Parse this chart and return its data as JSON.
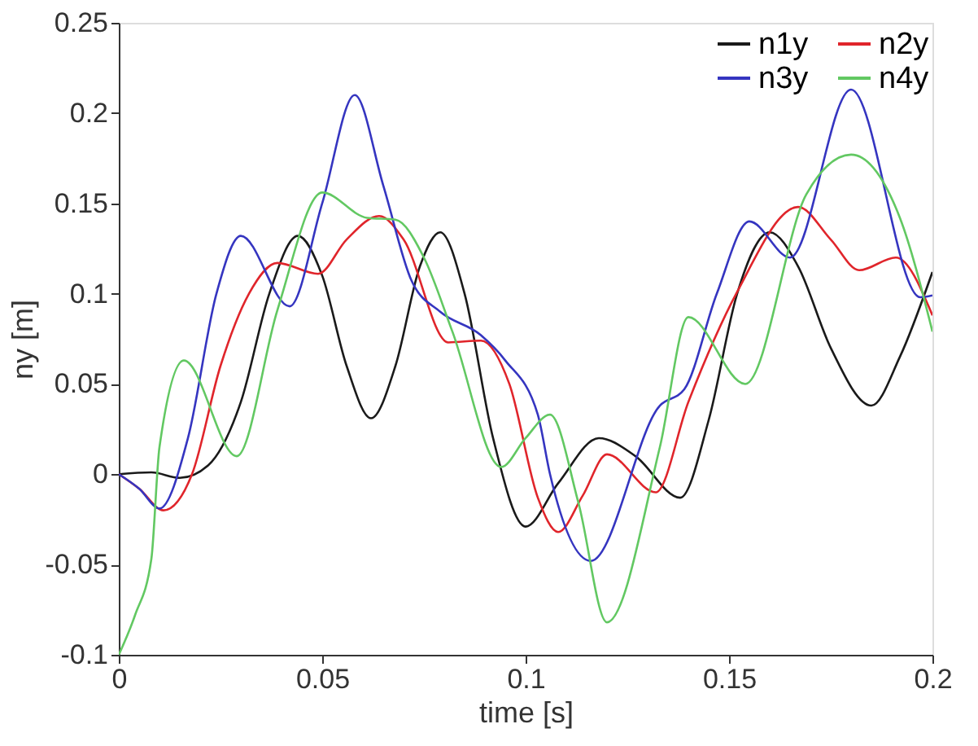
{
  "chart_data": {
    "type": "line",
    "xlabel": "time [s]",
    "ylabel": "ny [m]",
    "xlim": [
      0,
      0.2
    ],
    "ylim": [
      -0.1,
      0.25
    ],
    "xticks": [
      0,
      0.05,
      0.1,
      0.15,
      0.2
    ],
    "yticks": [
      -0.1,
      -0.05,
      0,
      0.05,
      0.1,
      0.15,
      0.2,
      0.25
    ],
    "legend": "top right",
    "line_style": "solid",
    "series": [
      {
        "name": "n1y",
        "color": "#1a1a1a",
        "x": [
          0,
          0.008,
          0.015,
          0.022,
          0.03,
          0.037,
          0.044,
          0.05,
          0.056,
          0.062,
          0.068,
          0.074,
          0.079,
          0.085,
          0.092,
          0.1,
          0.108,
          0.118,
          0.127,
          0.138,
          0.145,
          0.152,
          0.16,
          0.167,
          0.175,
          0.185,
          0.192,
          0.2
        ],
        "values": [
          0,
          0.001,
          -0.002,
          0.005,
          0.04,
          0.1,
          0.132,
          0.11,
          0.06,
          0.031,
          0.06,
          0.115,
          0.134,
          0.1,
          0.02,
          -0.029,
          -0.005,
          0.02,
          0.01,
          -0.013,
          0.03,
          0.1,
          0.134,
          0.115,
          0.07,
          0.038,
          0.065,
          0.112
        ]
      },
      {
        "name": "n2y",
        "color": "#e0252b",
        "x": [
          0,
          0.005,
          0.011,
          0.018,
          0.025,
          0.032,
          0.039,
          0.049,
          0.056,
          0.064,
          0.07,
          0.081,
          0.089,
          0.096,
          0.103,
          0.108,
          0.114,
          0.12,
          0.132,
          0.14,
          0.152,
          0.167,
          0.175,
          0.182,
          0.191,
          0.2
        ],
        "values": [
          0,
          -0.008,
          -0.02,
          0.0,
          0.06,
          0.1,
          0.117,
          0.111,
          0.13,
          0.143,
          0.13,
          0.073,
          0.074,
          0.05,
          -0.013,
          -0.032,
          -0.012,
          0.011,
          -0.01,
          0.04,
          0.101,
          0.148,
          0.13,
          0.113,
          0.12,
          0.088
        ]
      },
      {
        "name": "n3y",
        "color": "#3535c0",
        "x": [
          0,
          0.005,
          0.01,
          0.017,
          0.024,
          0.03,
          0.042,
          0.05,
          0.058,
          0.065,
          0.072,
          0.079,
          0.089,
          0.095,
          0.103,
          0.106,
          0.116,
          0.133,
          0.139,
          0.147,
          0.155,
          0.165,
          0.18,
          0.197,
          0.2
        ],
        "values": [
          0,
          -0.008,
          -0.019,
          0.02,
          0.1,
          0.132,
          0.093,
          0.15,
          0.21,
          0.16,
          0.107,
          0.09,
          0.077,
          0.063,
          0.033,
          0.0,
          -0.048,
          0.038,
          0.047,
          0.1,
          0.14,
          0.12,
          0.213,
          0.098,
          0.099
        ]
      },
      {
        "name": "n4y",
        "color": "#62c862",
        "x": [
          0,
          0.004,
          0.008,
          0.01,
          0.016,
          0.029,
          0.039,
          0.05,
          0.061,
          0.068,
          0.075,
          0.082,
          0.094,
          0.1,
          0.106,
          0.113,
          0.12,
          0.133,
          0.14,
          0.154,
          0.169,
          0.18,
          0.192,
          0.2
        ],
        "values": [
          -0.1,
          -0.078,
          -0.047,
          0.015,
          0.063,
          0.01,
          0.091,
          0.156,
          0.142,
          0.141,
          0.12,
          0.079,
          0.004,
          0.02,
          0.033,
          -0.016,
          -0.082,
          0.015,
          0.087,
          0.05,
          0.155,
          0.177,
          0.142,
          0.079
        ]
      }
    ]
  }
}
